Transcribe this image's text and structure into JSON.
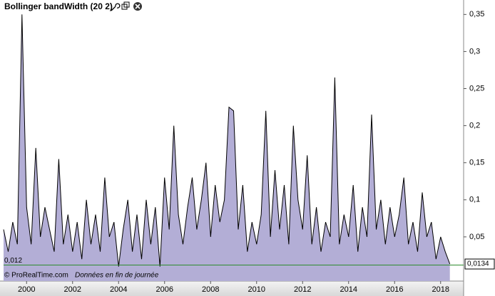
{
  "chart_data": {
    "type": "area",
    "title": "Bollinger bandWidth (20 2)",
    "source": "© ProRealTime.com",
    "note": "Données en fin de journée",
    "x": [
      1999.0,
      1999.2,
      1999.4,
      1999.6,
      1999.8,
      2000.0,
      2000.2,
      2000.4,
      2000.6,
      2000.8,
      2001.0,
      2001.2,
      2001.4,
      2001.6,
      2001.8,
      2002.0,
      2002.2,
      2002.4,
      2002.6,
      2002.8,
      2003.0,
      2003.2,
      2003.4,
      2003.6,
      2003.8,
      2004.0,
      2004.2,
      2004.4,
      2004.6,
      2004.8,
      2005.0,
      2005.2,
      2005.4,
      2005.6,
      2005.8,
      2006.0,
      2006.2,
      2006.4,
      2006.6,
      2006.8,
      2007.0,
      2007.2,
      2007.4,
      2007.6,
      2007.8,
      2008.0,
      2008.2,
      2008.4,
      2008.6,
      2008.8,
      2009.0,
      2009.2,
      2009.4,
      2009.6,
      2009.8,
      2010.0,
      2010.2,
      2010.4,
      2010.6,
      2010.8,
      2011.0,
      2011.2,
      2011.4,
      2011.6,
      2011.8,
      2012.0,
      2012.2,
      2012.4,
      2012.6,
      2012.8,
      2013.0,
      2013.2,
      2013.4,
      2013.6,
      2013.8,
      2014.0,
      2014.2,
      2014.4,
      2014.6,
      2014.8,
      2015.0,
      2015.2,
      2015.4,
      2015.6,
      2015.8,
      2016.0,
      2016.2,
      2016.4,
      2016.6,
      2016.8,
      2017.0,
      2017.2,
      2017.4,
      2017.6,
      2017.8,
      2018.0,
      2018.2,
      2018.4
    ],
    "series": [
      {
        "name": "Bollinger bandWidth",
        "color": "#000000",
        "fill": "#b3aed6",
        "values": [
          0.06,
          0.03,
          0.07,
          0.04,
          0.35,
          0.09,
          0.04,
          0.17,
          0.05,
          0.09,
          0.06,
          0.03,
          0.155,
          0.04,
          0.08,
          0.03,
          0.07,
          0.02,
          0.1,
          0.04,
          0.08,
          0.03,
          0.13,
          0.05,
          0.07,
          0.01,
          0.06,
          0.1,
          0.03,
          0.08,
          0.02,
          0.1,
          0.04,
          0.09,
          0.01,
          0.13,
          0.06,
          0.2,
          0.08,
          0.04,
          0.09,
          0.13,
          0.06,
          0.1,
          0.15,
          0.05,
          0.12,
          0.07,
          0.1,
          0.225,
          0.22,
          0.06,
          0.12,
          0.03,
          0.07,
          0.04,
          0.08,
          0.22,
          0.05,
          0.14,
          0.06,
          0.12,
          0.04,
          0.2,
          0.1,
          0.06,
          0.16,
          0.04,
          0.09,
          0.03,
          0.07,
          0.05,
          0.265,
          0.04,
          0.08,
          0.05,
          0.12,
          0.03,
          0.09,
          0.05,
          0.215,
          0.06,
          0.1,
          0.04,
          0.09,
          0.05,
          0.08,
          0.13,
          0.04,
          0.07,
          0.03,
          0.11,
          0.05,
          0.07,
          0.02,
          0.05,
          0.03,
          0.0134
        ]
      }
    ],
    "xlim": [
      1999.0,
      2019.0
    ],
    "xticks": [
      2000,
      2002,
      2004,
      2006,
      2008,
      2010,
      2012,
      2014,
      2016,
      2018
    ],
    "ylim": [
      -0.0096,
      0.3695
    ],
    "yticks": [
      {
        "value": 0.05,
        "label": "0,05"
      },
      {
        "value": 0.1,
        "label": "0,1"
      },
      {
        "value": 0.15,
        "label": "0,15"
      },
      {
        "value": 0.2,
        "label": "0,2"
      },
      {
        "value": 0.25,
        "label": "0,25"
      },
      {
        "value": 0.3,
        "label": "0,3"
      },
      {
        "value": 0.35,
        "label": "0,35"
      }
    ],
    "level": {
      "value": 0.012,
      "label": "0,012",
      "color": "#2e8b2e"
    },
    "current_value": {
      "value": 0.0134,
      "label": "0,0134"
    }
  }
}
